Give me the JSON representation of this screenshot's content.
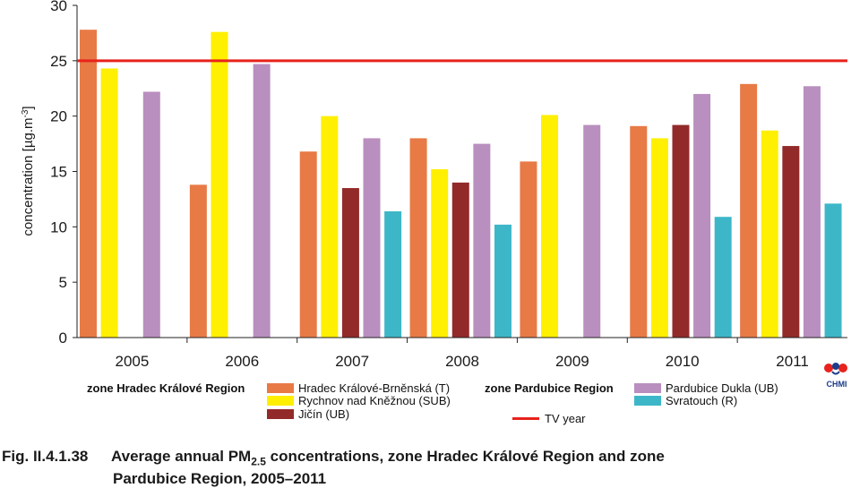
{
  "chart_data": {
    "type": "bar",
    "title": "",
    "xlabel": "",
    "ylabel": "concentration [µg.m",
    "ylabel_sup": "-3",
    "ylabel_end": "]",
    "ylim": [
      0,
      30
    ],
    "yticks": [
      0,
      5,
      10,
      15,
      20,
      25,
      30
    ],
    "grid": false,
    "categories": [
      "2005",
      "2006",
      "2007",
      "2008",
      "2009",
      "2010",
      "2011"
    ],
    "series": [
      {
        "name": "Hradec Králové-Brněnská (T)",
        "color": "#e87a45",
        "values": [
          27.8,
          13.8,
          16.8,
          18.0,
          15.9,
          19.1,
          22.9
        ]
      },
      {
        "name": "Rychnov nad Kněžnou (SUB)",
        "color": "#ffef00",
        "values": [
          24.3,
          27.6,
          20.0,
          15.2,
          20.1,
          18.0,
          18.7
        ]
      },
      {
        "name": "Jičín (UB)",
        "color": "#922a2a",
        "values": [
          null,
          null,
          13.5,
          14.0,
          null,
          19.2,
          17.3
        ]
      },
      {
        "name": "Pardubice Dukla (UB)",
        "color": "#b98fbf",
        "values": [
          22.2,
          24.7,
          18.0,
          17.5,
          19.2,
          22.0,
          22.7
        ]
      },
      {
        "name": "Svratouch (R)",
        "color": "#3db7c8",
        "values": [
          null,
          null,
          11.4,
          10.2,
          null,
          10.9,
          12.1
        ]
      }
    ],
    "reference_line": {
      "name": "TV year",
      "value": 25,
      "color": "#e8221c"
    }
  },
  "legend": {
    "zone1_label": "zone Hradec Králové Region",
    "zone2_label": "zone Pardubice Region"
  },
  "caption": {
    "fig_no": "Fig. II.4.1.38",
    "line1_pre": "Average annual PM",
    "pm_sub": "2.5",
    "line1_post": " concentrations, zone Hradec Králové Region and zone",
    "line2": "Pardubice Region, 2005–2011"
  },
  "logo": {
    "text": "CHMI",
    "icon": "chmi-logo-icon"
  }
}
